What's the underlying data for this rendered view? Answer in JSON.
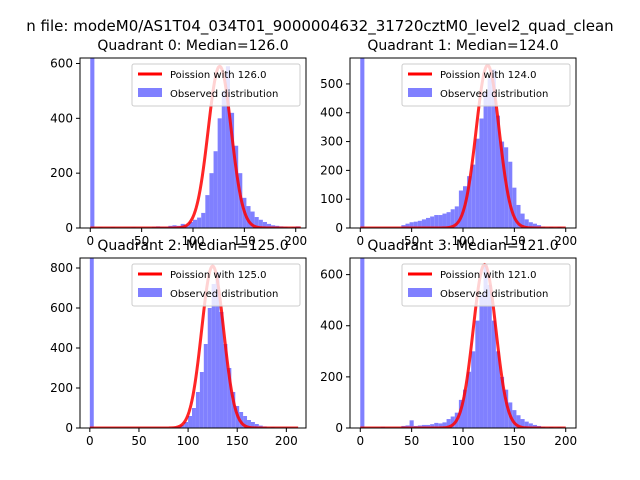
{
  "figure_title": "n file: modeM0/AS1T04_034T01_9000004632_31720cztM0_level2_quad_clean",
  "colors": {
    "poisson": "#ff0000",
    "observed": "#8080ff",
    "axes": "#000000"
  },
  "chart_data": [
    {
      "type": "bar",
      "title": "Quadrant 0: Median=126.0",
      "xlim": [
        -10,
        210
      ],
      "ylim": [
        0,
        620
      ],
      "xticks": [
        0,
        50,
        100,
        150,
        200
      ],
      "yticks": [
        0,
        200,
        400,
        600
      ],
      "bin_width": 4,
      "observed": {
        "label": "Observed distribution",
        "bins": [
          [
            0,
            620
          ],
          [
            8,
            3
          ],
          [
            20,
            3
          ],
          [
            40,
            3
          ],
          [
            60,
            5
          ],
          [
            64,
            6
          ],
          [
            68,
            5
          ],
          [
            72,
            5
          ],
          [
            76,
            8
          ],
          [
            80,
            10
          ],
          [
            84,
            8
          ],
          [
            88,
            15
          ],
          [
            92,
            10
          ],
          [
            96,
            22
          ],
          [
            100,
            30
          ],
          [
            104,
            38
          ],
          [
            108,
            55
          ],
          [
            112,
            120
          ],
          [
            116,
            200
          ],
          [
            120,
            280
          ],
          [
            124,
            400
          ],
          [
            128,
            500
          ],
          [
            132,
            590
          ],
          [
            136,
            420
          ],
          [
            140,
            300
          ],
          [
            144,
            200
          ],
          [
            148,
            110
          ],
          [
            152,
            80
          ],
          [
            156,
            60
          ],
          [
            160,
            40
          ],
          [
            164,
            30
          ],
          [
            168,
            22
          ],
          [
            172,
            15
          ],
          [
            176,
            10
          ],
          [
            180,
            8
          ],
          [
            184,
            6
          ],
          [
            188,
            5
          ],
          [
            196,
            4
          ],
          [
            200,
            6
          ]
        ]
      },
      "poisson": {
        "label": "Poission with 126.0",
        "mean": 126.0,
        "peak": 590,
        "x_range": [
          0,
          205
        ]
      }
    },
    {
      "type": "bar",
      "title": "Quadrant 1: Median=124.0",
      "xlim": [
        -10,
        210
      ],
      "ylim": [
        0,
        590
      ],
      "xticks": [
        0,
        50,
        100,
        150,
        200
      ],
      "yticks": [
        0,
        100,
        200,
        300,
        400,
        500
      ],
      "bin_width": 4,
      "observed": {
        "label": "Observed distribution",
        "bins": [
          [
            0,
            590
          ],
          [
            40,
            10
          ],
          [
            44,
            15
          ],
          [
            48,
            20
          ],
          [
            52,
            22
          ],
          [
            56,
            25
          ],
          [
            60,
            30
          ],
          [
            64,
            35
          ],
          [
            68,
            40
          ],
          [
            72,
            45
          ],
          [
            76,
            45
          ],
          [
            80,
            50
          ],
          [
            84,
            55
          ],
          [
            88,
            65
          ],
          [
            92,
            75
          ],
          [
            96,
            130
          ],
          [
            100,
            145
          ],
          [
            104,
            180
          ],
          [
            108,
            220
          ],
          [
            112,
            310
          ],
          [
            116,
            380
          ],
          [
            120,
            470
          ],
          [
            124,
            520
          ],
          [
            128,
            550
          ],
          [
            132,
            390
          ],
          [
            136,
            300
          ],
          [
            140,
            280
          ],
          [
            144,
            230
          ],
          [
            148,
            140
          ],
          [
            152,
            80
          ],
          [
            156,
            50
          ],
          [
            160,
            30
          ],
          [
            164,
            20
          ],
          [
            168,
            15
          ],
          [
            172,
            10
          ],
          [
            176,
            5
          ],
          [
            184,
            4
          ],
          [
            192,
            4
          ]
        ]
      },
      "poisson": {
        "label": "Poission with 124.0",
        "mean": 124.0,
        "peak": 565,
        "x_range": [
          0,
          200
        ]
      }
    },
    {
      "type": "bar",
      "title": "Quadrant 2: Median=125.0",
      "xlim": [
        -10,
        220
      ],
      "ylim": [
        0,
        850
      ],
      "xticks": [
        0,
        50,
        100,
        150,
        200
      ],
      "yticks": [
        0,
        200,
        400,
        600,
        800
      ],
      "bin_width": 4,
      "observed": {
        "label": "Observed distribution",
        "bins": [
          [
            0,
            850
          ],
          [
            84,
            5
          ],
          [
            88,
            8
          ],
          [
            92,
            15
          ],
          [
            96,
            30
          ],
          [
            100,
            60
          ],
          [
            104,
            100
          ],
          [
            108,
            180
          ],
          [
            112,
            280
          ],
          [
            116,
            420
          ],
          [
            120,
            600
          ],
          [
            124,
            720
          ],
          [
            128,
            780
          ],
          [
            132,
            580
          ],
          [
            136,
            420
          ],
          [
            140,
            300
          ],
          [
            144,
            180
          ],
          [
            148,
            110
          ],
          [
            152,
            80
          ],
          [
            156,
            60
          ],
          [
            160,
            40
          ],
          [
            164,
            30
          ],
          [
            168,
            20
          ],
          [
            172,
            12
          ],
          [
            176,
            8
          ],
          [
            184,
            5
          ],
          [
            196,
            3
          ],
          [
            204,
            3
          ]
        ]
      },
      "poisson": {
        "label": "Poission with 125.0",
        "mean": 125.0,
        "peak": 810,
        "x_range": [
          0,
          212
        ]
      }
    },
    {
      "type": "bar",
      "title": "Quadrant 3: Median=121.0",
      "xlim": [
        -10,
        210
      ],
      "ylim": [
        0,
        665
      ],
      "xticks": [
        0,
        50,
        100,
        150,
        200
      ],
      "yticks": [
        0,
        200,
        400,
        600
      ],
      "bin_width": 4,
      "observed": {
        "label": "Observed distribution",
        "bins": [
          [
            0,
            665
          ],
          [
            20,
            5
          ],
          [
            40,
            8
          ],
          [
            44,
            10
          ],
          [
            48,
            30
          ],
          [
            52,
            8
          ],
          [
            56,
            10
          ],
          [
            60,
            12
          ],
          [
            64,
            12
          ],
          [
            68,
            15
          ],
          [
            72,
            20
          ],
          [
            76,
            18
          ],
          [
            80,
            22
          ],
          [
            84,
            35
          ],
          [
            88,
            45
          ],
          [
            92,
            60
          ],
          [
            96,
            110
          ],
          [
            100,
            150
          ],
          [
            104,
            220
          ],
          [
            108,
            300
          ],
          [
            112,
            420
          ],
          [
            116,
            520
          ],
          [
            120,
            640
          ],
          [
            124,
            560
          ],
          [
            128,
            420
          ],
          [
            132,
            300
          ],
          [
            136,
            200
          ],
          [
            140,
            150
          ],
          [
            144,
            100
          ],
          [
            148,
            70
          ],
          [
            152,
            50
          ],
          [
            156,
            35
          ],
          [
            160,
            25
          ],
          [
            164,
            18
          ],
          [
            168,
            12
          ],
          [
            172,
            8
          ],
          [
            176,
            5
          ],
          [
            184,
            4
          ],
          [
            192,
            3
          ]
        ]
      },
      "poisson": {
        "label": "Poission with 121.0",
        "mean": 121.0,
        "peak": 640,
        "x_range": [
          0,
          200
        ]
      }
    }
  ]
}
